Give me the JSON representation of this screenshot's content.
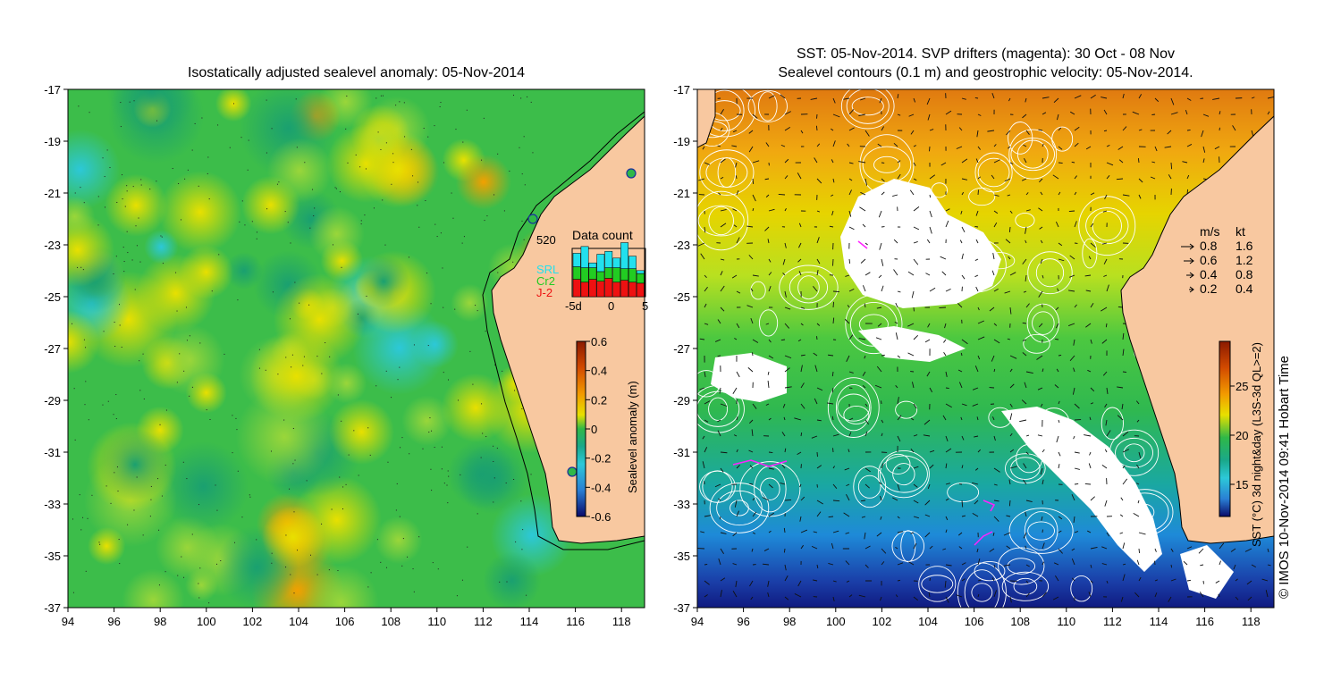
{
  "left_panel": {
    "title": "Isostatically adjusted sealevel anomaly: 05-Nov-2014",
    "x_ticks": [
      "94",
      "96",
      "98",
      "100",
      "102",
      "104",
      "106",
      "108",
      "110",
      "112",
      "114",
      "116",
      "118"
    ],
    "y_ticks": [
      "-17",
      "-19",
      "-21",
      "-23",
      "-25",
      "-27",
      "-29",
      "-31",
      "-33",
      "-35",
      "-37"
    ],
    "colorbar": {
      "label": "Sealevel anomaly (m)",
      "ticks": [
        "0.6",
        "0.4",
        "0.2",
        "0",
        "-0.2",
        "-0.4",
        "-0.6"
      ],
      "colors": [
        "#8b1a00",
        "#d24a00",
        "#f29a00",
        "#e8e000",
        "#9ad63a",
        "#2fb848",
        "#1aa88a",
        "#2cc8d8",
        "#2a7fd4",
        "#1a2f9e",
        "#0a0a6a"
      ]
    },
    "data_count": {
      "title": "Data count",
      "max_label": "520",
      "legend": [
        {
          "label": "SRL",
          "color": "#22e0ee"
        },
        {
          "label": "Cr2",
          "color": "#22cc22"
        },
        {
          "label": "J-2",
          "color": "#ee1111"
        }
      ],
      "x_ticks": [
        "-5d",
        "0",
        "5"
      ],
      "bars": [
        {
          "j2": 0.36,
          "cr2": 0.26,
          "srl": 0.28
        },
        {
          "j2": 0.3,
          "cr2": 0.3,
          "srl": 0.44
        },
        {
          "j2": 0.36,
          "cr2": 0.24,
          "srl": 0.1
        },
        {
          "j2": 0.32,
          "cr2": 0.2,
          "srl": 0.36
        },
        {
          "j2": 0.38,
          "cr2": 0.22,
          "srl": 0.34
        },
        {
          "j2": 0.3,
          "cr2": 0.3,
          "srl": 0.2
        },
        {
          "j2": 0.34,
          "cr2": 0.24,
          "srl": 0.54
        },
        {
          "j2": 0.3,
          "cr2": 0.28,
          "srl": 0.26
        },
        {
          "j2": 0.28,
          "cr2": 0.2,
          "srl": 0.06
        }
      ]
    }
  },
  "right_panel": {
    "title_line1": "SST: 05-Nov-2014. SVP drifters (magenta): 30 Oct - 08 Nov",
    "title_line2": "Sealevel contours (0.1 m) and geostrophic velocity: 05-Nov-2014.",
    "x_ticks": [
      "94",
      "96",
      "98",
      "100",
      "102",
      "104",
      "106",
      "108",
      "110",
      "112",
      "114",
      "116",
      "118"
    ],
    "y_ticks": [
      "-17",
      "-19",
      "-21",
      "-23",
      "-25",
      "-27",
      "-29",
      "-31",
      "-33",
      "-35",
      "-37"
    ],
    "velocity_key": {
      "header_ms": "m/s",
      "header_kt": "kt",
      "rows": [
        {
          "ms": "0.8",
          "kt": "1.6"
        },
        {
          "ms": "0.6",
          "kt": "1.2"
        },
        {
          "ms": "0.4",
          "kt": "0.8"
        },
        {
          "ms": "0.2",
          "kt": "0.4"
        }
      ]
    },
    "colorbar": {
      "label": "SST (°C) 3d night&day (L3S-3d QL>=2)",
      "ticks": [
        "25",
        "20",
        "15"
      ],
      "colors": [
        "#8b1a00",
        "#d24a00",
        "#f29a00",
        "#e8e000",
        "#9ad63a",
        "#2fb848",
        "#1aa88a",
        "#2cc8d8",
        "#2a7fd4",
        "#1a2f9e",
        "#0a0a6a"
      ]
    }
  },
  "credit": "© IMOS 10-Nov-2014 09:41 Hobart Time",
  "colors": {
    "land": "#f8c8a0",
    "ocean_base": "#3cbd4a",
    "drifter": "#ff22ff",
    "arrow": "#111111",
    "contour": "#ffffff"
  }
}
